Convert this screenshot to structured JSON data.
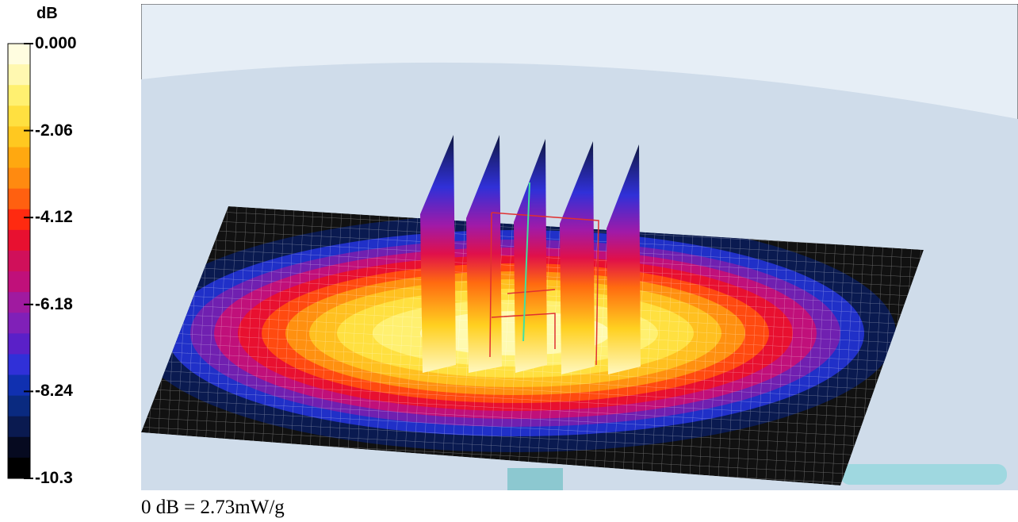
{
  "colorbar": {
    "unit": "dB",
    "ticks": [
      "0.000",
      "-2.06",
      "-4.12",
      "-6.18",
      "-8.24",
      "-10.3"
    ]
  },
  "caption": "0 dB = 2.73mW/g"
}
